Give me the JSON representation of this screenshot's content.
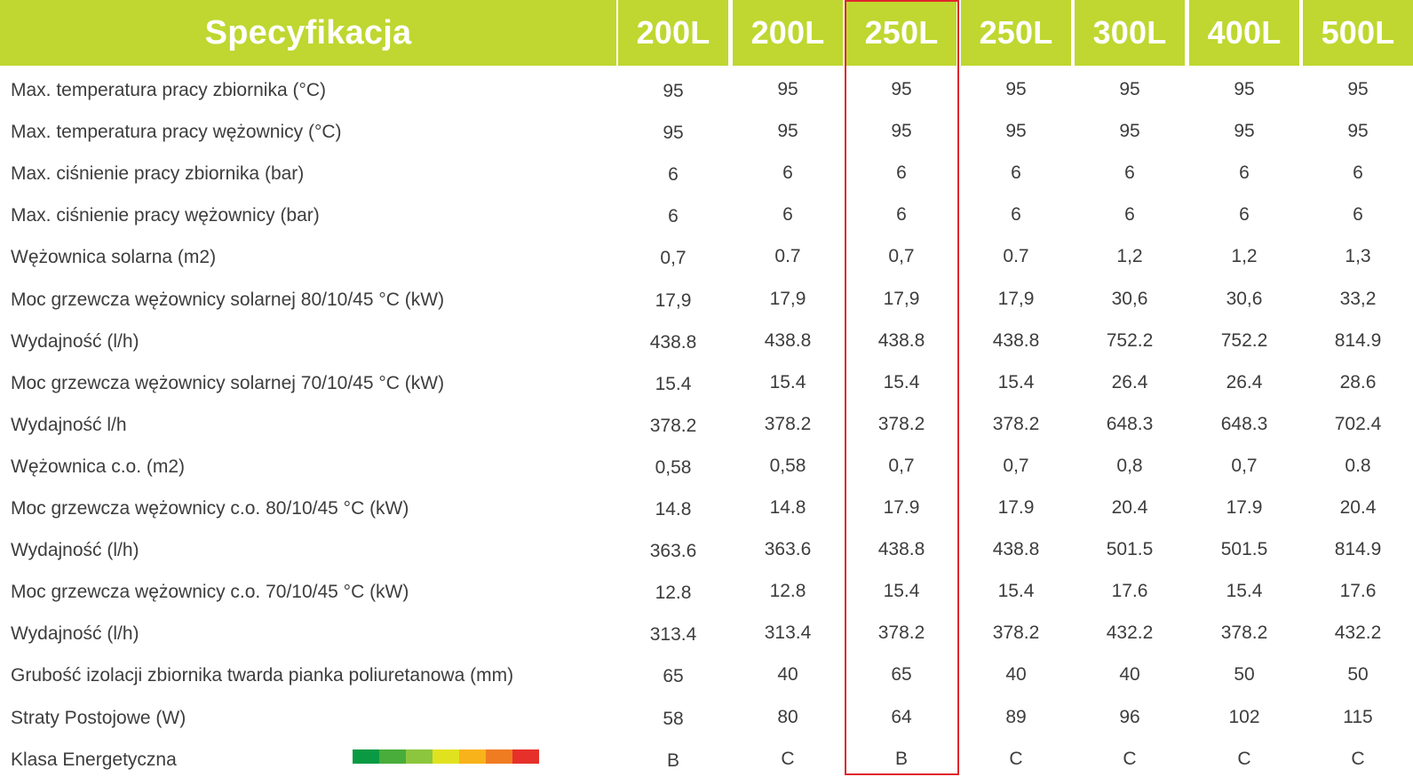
{
  "header": {
    "spec_label": "Specyfikacja",
    "columns": [
      "200L",
      "200L",
      "250L",
      "250L",
      "300L",
      "400L",
      "500L"
    ]
  },
  "colors": {
    "header_bg": "#bfd730",
    "highlight_border": "#e0262b",
    "energy_scale": [
      "#0b9a44",
      "#48ad3a",
      "#8cc63e",
      "#e1e21f",
      "#f9b31a",
      "#f07c22",
      "#e6302a"
    ]
  },
  "highlighted_column": 2,
  "rows": [
    {
      "label": "Max. temperatura pracy zbiornika (°C)",
      "values": [
        "95",
        "95",
        "95",
        "95",
        "95",
        "95",
        "95"
      ]
    },
    {
      "label": "Max. temperatura pracy wężownicy (°C)",
      "values": [
        "95",
        "95",
        "95",
        "95",
        "95",
        "95",
        "95"
      ]
    },
    {
      "label": "Max. ciśnienie pracy zbiornika (bar)",
      "values": [
        "6",
        "6",
        "6",
        "6",
        "6",
        "6",
        "6"
      ]
    },
    {
      "label": "Max. ciśnienie pracy wężownicy (bar)",
      "values": [
        "6",
        "6",
        "6",
        "6",
        "6",
        "6",
        "6"
      ]
    },
    {
      "label": "Wężownica solarna (m2)",
      "values": [
        "0,7",
        "0.7",
        "0,7",
        "0.7",
        "1,2",
        "1,2",
        "1,3"
      ]
    },
    {
      "label": "Moc grzewcza wężownicy solarnej 80/10/45 °C (kW)",
      "values": [
        "17,9",
        "17,9",
        "17,9",
        "17,9",
        "30,6",
        "30,6",
        "33,2"
      ]
    },
    {
      "label": "Wydajność (l/h)",
      "values": [
        "438.8",
        "438.8",
        "438.8",
        "438.8",
        "752.2",
        "752.2",
        "814.9"
      ]
    },
    {
      "label": "Moc grzewcza wężownicy solarnej 70/10/45 °C (kW)",
      "values": [
        "15.4",
        "15.4",
        "15.4",
        "15.4",
        "26.4",
        "26.4",
        "28.6"
      ]
    },
    {
      "label": "Wydajność l/h",
      "values": [
        "378.2",
        "378.2",
        "378.2",
        "378.2",
        "648.3",
        "648.3",
        "702.4"
      ]
    },
    {
      "label": "Wężownica c.o. (m2)",
      "values": [
        "0,58",
        "0,58",
        "0,7",
        "0,7",
        "0,8",
        "0,7",
        "0.8"
      ]
    },
    {
      "label": "Moc grzewcza wężownicy c.o. 80/10/45 °C (kW)",
      "values": [
        "14.8",
        "14.8",
        "17.9",
        "17.9",
        "20.4",
        "17.9",
        "20.4"
      ]
    },
    {
      "label": "Wydajność (l/h)",
      "values": [
        "363.6",
        "363.6",
        "438.8",
        "438.8",
        "501.5",
        "501.5",
        "814.9"
      ]
    },
    {
      "label": "Moc grzewcza wężownicy c.o. 70/10/45 °C (kW)",
      "values": [
        "12.8",
        "12.8",
        "15.4",
        "15.4",
        "17.6",
        "15.4",
        "17.6"
      ]
    },
    {
      "label": "Wydajność (l/h)",
      "values": [
        "313.4",
        "313.4",
        "378.2",
        "378.2",
        "432.2",
        "378.2",
        "432.2"
      ]
    },
    {
      "label": "Grubość izolacji zbiornika twarda pianka poliuretanowa (mm)",
      "values": [
        "65",
        "40",
        "65",
        "40",
        "40",
        "50",
        "50"
      ]
    },
    {
      "label": "Straty Postojowe (W)",
      "values": [
        "58",
        "80",
        "64",
        "89",
        "96",
        "102",
        "115"
      ]
    },
    {
      "label": "Klasa Energetyczna",
      "values": [
        "B",
        "C",
        "B",
        "C",
        "C",
        "C",
        "C"
      ]
    }
  ]
}
